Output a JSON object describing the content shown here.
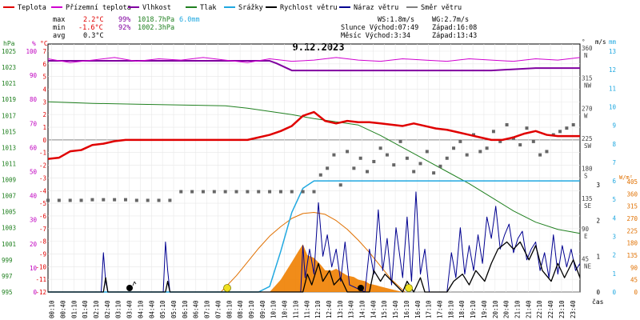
{
  "chart_data": {
    "type": "line",
    "title": "9.12.2023",
    "xlabel": "čas",
    "legend": [
      {
        "label": "Teplota",
        "color": "#e00000"
      },
      {
        "label": "Přízemní teplota",
        "color": "#d000d0"
      },
      {
        "label": "Vlhkost",
        "color": "#8000a0"
      },
      {
        "label": "Tlak",
        "color": "#208020"
      },
      {
        "label": "Srážky",
        "color": "#20a8e0"
      },
      {
        "label": "Rychlost větru",
        "color": "#000000"
      },
      {
        "label": "Náraz větru",
        "color": "#000090"
      },
      {
        "label": "Směr větru",
        "color": "#808080"
      }
    ],
    "stats": {
      "max_label": "max",
      "max_temp": "2.2°C",
      "max_hum": "99%",
      "max_press": "1018.7hPa",
      "max_rain": "6.0mm",
      "min_label": "min",
      "min_temp": "-1.6°C",
      "min_hum": "92%",
      "min_press": "1002.3hPa",
      "avg_label": "avg",
      "avg_temp": "0.3°C"
    },
    "wind_info": {
      "ws": "WS:1.8m/s",
      "wg": "WG:2.7m/s",
      "sun_rise": "Slunce Východ:07:49",
      "sun_set": "Západ:16:08",
      "moon_rise": "Měsíc  Východ:3:34",
      "moon_set": "Západ:13:43"
    },
    "axes": {
      "hpa": {
        "label": "hPa",
        "ticks": [
          995,
          997,
          999,
          1001,
          1003,
          1005,
          1007,
          1009,
          1011,
          1013,
          1015,
          1017,
          1019,
          1021,
          1023,
          1025
        ]
      },
      "pct": {
        "label": "%",
        "ticks": [
          0,
          10,
          20,
          30,
          40,
          50,
          60,
          70,
          80,
          90,
          100
        ]
      },
      "temp": {
        "label": "°C",
        "ticks": [
          -12,
          -11,
          -10,
          -9,
          -8,
          -7,
          -6,
          -5,
          -4,
          -3,
          -2,
          -1,
          0,
          1,
          2,
          3,
          4,
          5,
          6,
          7
        ]
      },
      "dir": {
        "label": "°",
        "ticks": [
          "45 NE",
          "90 E",
          "135 SE",
          "180 S",
          "225 SW",
          "270 W",
          "315 NW",
          "360 N"
        ]
      },
      "ms": {
        "label": "m/s",
        "ticks": [
          0,
          1,
          2,
          3
        ]
      },
      "mm": {
        "label": "mm",
        "ticks": [
          0,
          1,
          2,
          3,
          4,
          5,
          6,
          7,
          8,
          9,
          10,
          11,
          12,
          13
        ]
      },
      "wm2": {
        "label": "W/m²",
        "ticks": [
          0,
          45,
          90,
          135,
          180,
          225,
          270,
          315,
          360,
          405
        ]
      }
    },
    "time_labels": [
      "00:10",
      "00:40",
      "01:10",
      "01:40",
      "02:10",
      "02:40",
      "03:10",
      "03:40",
      "04:10",
      "04:40",
      "05:10",
      "05:40",
      "06:10",
      "06:40",
      "07:10",
      "07:40",
      "08:10",
      "08:40",
      "09:10",
      "09:40",
      "10:10",
      "10:40",
      "11:10",
      "11:40",
      "12:10",
      "12:40",
      "13:10",
      "13:40",
      "14:10",
      "14:40",
      "15:10",
      "15:40",
      "16:10",
      "16:40",
      "17:10",
      "17:40",
      "18:10",
      "18:40",
      "19:10",
      "19:40",
      "20:10",
      "20:40",
      "21:10",
      "21:40",
      "22:10",
      "22:40",
      "23:10",
      "23:40"
    ],
    "series": {
      "teplota": {
        "name": "Teplota",
        "unit": "°C",
        "x": [
          0,
          0.5,
          1,
          1.5,
          2,
          2.5,
          3,
          3.5,
          4,
          4.5,
          5,
          5.5,
          6,
          6.5,
          7,
          7.5,
          8,
          8.5,
          9,
          9.5,
          10,
          10.5,
          11,
          11.5,
          12,
          12.5,
          13,
          13.5,
          14,
          14.5,
          15,
          15.5,
          16,
          16.5,
          17,
          17.5,
          18,
          18.5,
          19,
          19.5,
          20,
          20.5,
          21,
          21.5,
          22,
          22.5,
          23,
          23.5,
          24
        ],
        "y": [
          -1.5,
          -1.4,
          -0.9,
          -0.8,
          -0.4,
          -0.3,
          -0.1,
          0,
          0,
          0,
          0,
          0,
          0,
          0,
          0,
          0,
          0,
          0,
          0,
          0.2,
          0.4,
          0.7,
          1.1,
          1.9,
          2.2,
          1.5,
          1.3,
          1.5,
          1.4,
          1.4,
          1.3,
          1.2,
          1.1,
          1.3,
          1.1,
          0.9,
          0.8,
          0.6,
          0.4,
          0.2,
          0,
          0,
          0.2,
          0.5,
          0.7,
          0.4,
          0.3,
          0.3,
          0.3
        ]
      },
      "prizemni_teplota": {
        "name": "Přízemní teplota",
        "unit": "°C",
        "x": [
          0,
          1,
          2,
          3,
          4,
          5,
          6,
          7,
          8,
          9,
          10,
          11,
          12,
          13,
          14,
          15,
          16,
          17,
          18,
          19,
          20,
          21,
          22,
          23,
          24
        ],
        "y": [
          6.4,
          6.1,
          6.3,
          6.5,
          6.2,
          6.4,
          6.3,
          6.5,
          6.3,
          6.1,
          6.4,
          6.2,
          6.3,
          6.5,
          6.3,
          6.2,
          6.4,
          6.3,
          6.2,
          6.4,
          6.3,
          6.2,
          6.4,
          6.3,
          6.5
        ]
      },
      "vlhkost": {
        "name": "Vlhkost",
        "unit": "%",
        "x": [
          0,
          4,
          8,
          10,
          10.3,
          11,
          11.3,
          12,
          14,
          16,
          18,
          20,
          22,
          24
        ],
        "y": [
          96,
          96,
          96,
          96,
          95,
          92,
          92,
          92,
          92,
          92,
          92,
          92,
          93,
          93
        ]
      },
      "tlak": {
        "name": "Tlak",
        "unit": "hPa",
        "x": [
          0,
          2,
          4,
          6,
          8,
          9,
          10,
          11,
          12,
          13,
          14,
          15,
          16,
          17,
          18,
          19,
          20,
          21,
          22,
          23,
          24
        ],
        "y": [
          1018.7,
          1018.5,
          1018.4,
          1018.3,
          1018.2,
          1017.9,
          1017.5,
          1017.1,
          1016.6,
          1016.2,
          1015.8,
          1014.5,
          1013,
          1011.5,
          1010,
          1008.5,
          1006.8,
          1005.1,
          1003.7,
          1002.8,
          1002.3
        ]
      },
      "srazky": {
        "name": "Srážky",
        "unit": "mm",
        "x": [
          0,
          9.5,
          10,
          10.5,
          11,
          11.5,
          12,
          13,
          16,
          20,
          24
        ],
        "y": [
          0,
          0,
          0.3,
          2.2,
          4.3,
          5.6,
          6,
          6,
          6,
          6,
          6
        ]
      },
      "rychlost_vetru": {
        "name": "Rychlost větru",
        "unit": "m/s",
        "x": [
          0,
          2.5,
          2.6,
          2.7,
          5.3,
          5.4,
          5.5,
          11.5,
          11.7,
          11.9,
          12.2,
          12.4,
          12.7,
          12.9,
          13.2,
          13.5,
          14.5,
          14.7,
          15,
          15.2,
          16,
          16.2,
          16.5,
          16.8,
          17,
          17.5,
          18,
          18.3,
          18.7,
          19,
          19.3,
          19.7,
          20,
          20.3,
          20.7,
          21,
          21.3,
          21.7,
          22,
          22.3,
          22.7,
          23,
          23.3,
          23.7,
          24
        ],
        "y": [
          0,
          0,
          0.4,
          0,
          0,
          0.3,
          0,
          0,
          0.5,
          0.2,
          0.8,
          0.3,
          0.6,
          0.2,
          0.4,
          0,
          0,
          0.6,
          0.3,
          0.5,
          0,
          0.3,
          0,
          0.4,
          0,
          0,
          0,
          0.3,
          0.5,
          0.2,
          0.6,
          0.3,
          0.8,
          1.2,
          1.4,
          1.2,
          1.4,
          0.9,
          1.3,
          0.6,
          0.3,
          0.8,
          0.4,
          0.9,
          0.4
        ]
      },
      "naraz_vetru": {
        "name": "Náraz větru",
        "unit": "m/s",
        "x": [
          0,
          2.4,
          2.5,
          2.6,
          2.7,
          5.2,
          5.3,
          5.4,
          5.5,
          11.4,
          11.5,
          11.6,
          11.8,
          12,
          12.2,
          12.4,
          12.6,
          12.8,
          13,
          13.2,
          13.4,
          13.6,
          14.3,
          14.5,
          14.7,
          14.9,
          15.1,
          15.3,
          15.5,
          15.7,
          16,
          16.2,
          16.4,
          16.6,
          16.8,
          17,
          17.2,
          18,
          18.2,
          18.4,
          18.6,
          18.8,
          19,
          19.2,
          19.4,
          19.6,
          19.8,
          20,
          20.2,
          20.4,
          20.6,
          20.8,
          21,
          21.2,
          21.4,
          21.6,
          21.8,
          22,
          22.2,
          22.4,
          22.6,
          22.8,
          23,
          23.2,
          23.4,
          23.6,
          23.8,
          24
        ],
        "y": [
          0,
          0,
          1.1,
          0.3,
          0,
          0,
          1.4,
          0.6,
          0,
          0,
          1.3,
          0.4,
          1.2,
          0.5,
          2.5,
          1,
          1.6,
          0.7,
          1.2,
          0.3,
          1.4,
          0.2,
          0,
          1.2,
          0.5,
          2.3,
          0.6,
          1.5,
          0.2,
          1.8,
          0.4,
          2.1,
          0.3,
          2.8,
          0.5,
          1.2,
          0,
          0,
          1.1,
          0.4,
          1.8,
          0.5,
          1.3,
          0.6,
          1.6,
          0.8,
          2.1,
          1.5,
          2.4,
          1.2,
          1.6,
          1.9,
          1.1,
          1.5,
          1.7,
          0.9,
          1.2,
          1.4,
          0.6,
          1.1,
          0.4,
          1.6,
          0.5,
          1.3,
          0.7,
          1.2,
          0.6,
          0.8
        ]
      },
      "smer_vetru": {
        "name": "Směr větru",
        "unit": "°",
        "x": [
          0,
          0.5,
          1,
          1.5,
          2,
          2.5,
          3,
          3.5,
          4,
          4.5,
          5,
          5.5,
          6,
          6.5,
          7,
          7.5,
          8,
          8.5,
          9,
          9.5,
          10,
          10.5,
          11,
          11.5,
          12,
          12.3,
          12.6,
          12.9,
          13.2,
          13.5,
          13.8,
          14.1,
          14.4,
          14.7,
          15,
          15.3,
          15.6,
          15.9,
          16.2,
          16.5,
          16.8,
          17.1,
          17.4,
          17.7,
          18,
          18.3,
          18.6,
          18.9,
          19.2,
          19.5,
          19.8,
          20.1,
          20.4,
          20.7,
          21,
          21.3,
          21.6,
          21.9,
          22.2,
          22.5,
          22.8,
          23.1,
          23.4,
          23.7
        ],
        "y": [
          137,
          137,
          137,
          137,
          138,
          138,
          138,
          138,
          137,
          137,
          137,
          137,
          150,
          150,
          150,
          150,
          150,
          150,
          150,
          150,
          150,
          150,
          150,
          150,
          150,
          175,
          185,
          205,
          160,
          210,
          185,
          200,
          180,
          195,
          215,
          205,
          190,
          225,
          200,
          180,
          192,
          210,
          178,
          188,
          200,
          215,
          225,
          205,
          235,
          210,
          215,
          240,
          225,
          250,
          230,
          220,
          245,
          225,
          205,
          210,
          235,
          240,
          245,
          250
        ]
      },
      "slunecni_zareni": {
        "name": "Sluneční záření",
        "unit": "W/m²",
        "x": [
          0,
          10,
          10.5,
          11,
          11.3,
          11.5,
          11.7,
          12,
          12.3,
          12.5,
          12.8,
          13,
          13.3,
          13.5,
          13.8,
          14,
          14.3,
          14.5,
          14.8,
          15,
          15.5,
          16,
          24
        ],
        "y": [
          0,
          0,
          45,
          110,
          150,
          175,
          135,
          125,
          100,
          80,
          78,
          85,
          70,
          60,
          55,
          45,
          40,
          30,
          25,
          20,
          10,
          0,
          0
        ]
      },
      "teoreticke_zareni": {
        "name": "Teoretické záření",
        "unit": "W/m²",
        "x": [
          7.8,
          8.5,
          9,
          9.5,
          10,
          10.5,
          11,
          11.5,
          12,
          12.5,
          13,
          13.5,
          14,
          14.5,
          15,
          15.5,
          16.1
        ],
        "y": [
          0,
          60,
          110,
          160,
          205,
          240,
          270,
          288,
          292,
          285,
          262,
          230,
          190,
          145,
          95,
          45,
          0
        ]
      }
    }
  }
}
